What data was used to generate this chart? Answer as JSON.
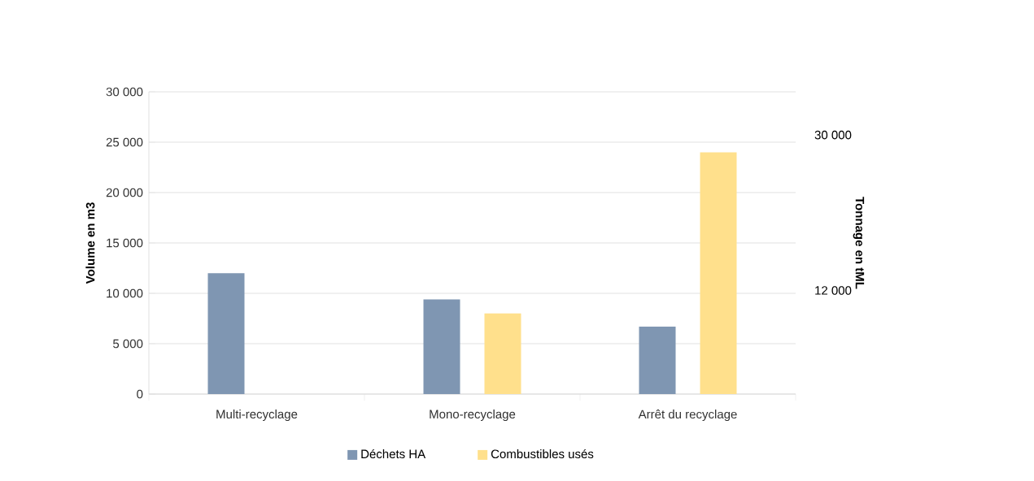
{
  "chart_data": {
    "type": "bar",
    "categories": [
      "Multi-recyclage",
      "Mono-recyclage",
      "Arrêt du recyclage"
    ],
    "series": [
      {
        "name": "Déchets HA",
        "color": "#7f96b2",
        "values": [
          12000,
          9400,
          6700
        ]
      },
      {
        "name": "Combustibles usés",
        "color": "#ffe08c",
        "values": [
          null,
          8000,
          24000
        ]
      }
    ],
    "ylabel": "Volume en m3",
    "y2label": "Tonnage en tML",
    "ylim": [
      0,
      30000
    ],
    "yticks": [
      {
        "value": 0,
        "label": "0"
      },
      {
        "value": 5000,
        "label": "5 000"
      },
      {
        "value": 10000,
        "label": "10 000"
      },
      {
        "value": 15000,
        "label": "15 000"
      },
      {
        "value": 20000,
        "label": "20 000"
      },
      {
        "value": 25000,
        "label": "25 000"
      },
      {
        "value": 30000,
        "label": "30 000"
      }
    ],
    "y2lim": [
      0,
      35000
    ],
    "y2ticks": [
      {
        "value": 12000,
        "label": "12 000"
      },
      {
        "value": 30000,
        "label": "30 000"
      }
    ],
    "grid": "y",
    "legend": "bottom"
  }
}
